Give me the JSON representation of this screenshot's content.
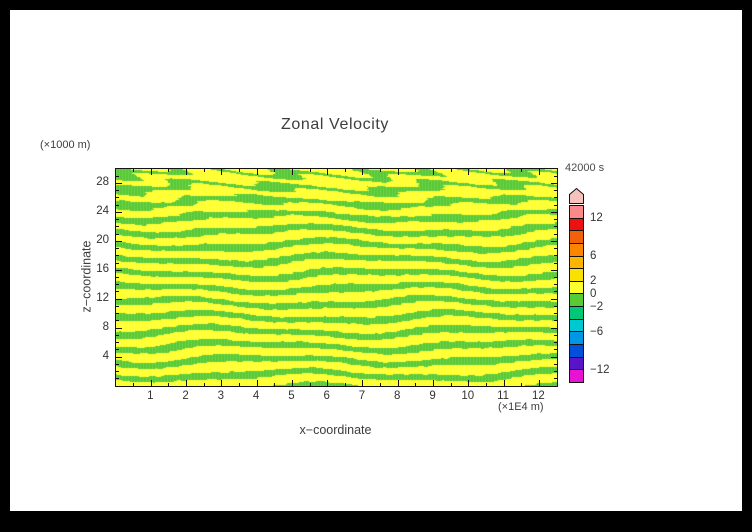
{
  "title": "Zonal Velocity",
  "labels": {
    "time": "42000 s",
    "x_axis": "x−coordinate",
    "y_axis": "z−coordinate",
    "x_unit": "(×1E4 m)",
    "y_unit": "(×1000 m)"
  },
  "colors": {
    "frame": "#000000",
    "canvas": "#ffffff",
    "axis": "#141414",
    "text": "#3d3d3d"
  },
  "chart_data": {
    "type": "heatmap",
    "title": "Zonal Velocity",
    "xlabel": "x−coordinate",
    "ylabel": "z−coordinate",
    "x_unit": "(×1E4 m)",
    "y_unit": "(×1000 m)",
    "time_annotation": "42000 s",
    "xlim": [
      0,
      12.5
    ],
    "ylim": [
      0,
      30
    ],
    "x_ticks": [
      1,
      2,
      3,
      4,
      5,
      6,
      7,
      8,
      9,
      10,
      11,
      12
    ],
    "y_ticks": [
      4,
      8,
      12,
      16,
      20,
      24,
      28
    ],
    "x_minor_step": 0.5,
    "y_minor_step": 1,
    "grid": false,
    "legend_position": "right-colorbar",
    "field_summary": "Zonal velocity u(x,z) at t=42000 s: thin quasi-horizontal alternating bands; yellow background values between 0 and 2, green bands between -2 and 0; banding becomes tilted and braided near the top of the domain.",
    "value_range": [
      -14,
      14
    ],
    "colorbar": {
      "orientation": "vertical",
      "max": 14,
      "min": -14,
      "segment_step": 2,
      "tick_values": [
        12,
        6,
        2,
        0,
        -2,
        -6,
        -12
      ],
      "tick_labels": [
        "12",
        "6",
        "2",
        "0",
        "−2",
        "−6",
        "−12"
      ],
      "segment_colors_top_to_bottom": [
        "#fa8a8a",
        "#ee1111",
        "#f2600a",
        "#fb8500",
        "#fcb500",
        "#f8e000",
        "#ffff2e",
        "#58ca35",
        "#00c878",
        "#00c8d2",
        "#0096e6",
        "#0050dc",
        "#5a14c8",
        "#e614d2"
      ],
      "arrow_color": "#f6c3bc"
    },
    "pattern": {
      "background_color": "#ffff2e",
      "band_color": "#58ca35",
      "background_value_range": [
        0,
        2
      ],
      "band_value_range": [
        -2,
        0
      ],
      "kz": 3.15,
      "threshold": -0.22,
      "wiggle_amp": 1.55,
      "turbulence_amp": 2.1,
      "texture_period": 3,
      "texture_lighten": 0.13
    }
  }
}
